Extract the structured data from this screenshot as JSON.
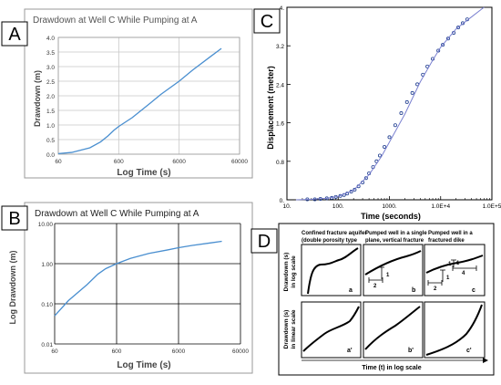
{
  "panel_labels": {
    "a": "A",
    "b": "B",
    "c": "C",
    "d": "D"
  },
  "chart_data": [
    {
      "id": "A",
      "type": "line",
      "title": "Drawdown at Well C While Pumping at A",
      "xlabel": "Log Time (s)",
      "ylabel": "Drawdown (m)",
      "xscale": "log",
      "xticks": [
        "60",
        "600",
        "6000",
        "60000"
      ],
      "xtick_values": [
        60,
        600,
        6000,
        60000
      ],
      "yticks": [
        "0.0",
        "0.5",
        "1.0",
        "1.5",
        "2.0",
        "2.5",
        "3.0",
        "3.5",
        "4.0"
      ],
      "xlim": [
        60,
        60000
      ],
      "ylim": [
        0,
        4
      ],
      "grid": true,
      "series": [
        {
          "color": "#4a8fd0",
          "x": [
            60,
            100,
            200,
            300,
            400,
            500,
            600,
            1000,
            2000,
            3000,
            6000,
            10000,
            20000,
            30000
          ],
          "y": [
            0.02,
            0.06,
            0.22,
            0.42,
            0.63,
            0.82,
            0.95,
            1.25,
            1.75,
            2.05,
            2.5,
            2.88,
            3.35,
            3.62
          ]
        }
      ]
    },
    {
      "id": "B",
      "type": "line",
      "title": "Drawdown at Well C While Pumping at A",
      "xlabel": "Log Time (s)",
      "ylabel": "Log Drawdown (m)",
      "xscale": "log",
      "yscale": "log",
      "xticks": [
        "60",
        "600",
        "6000",
        "60000"
      ],
      "xtick_values": [
        60,
        600,
        6000,
        60000
      ],
      "yticks": [
        "0.01",
        "0.10",
        "1.00",
        "10.00"
      ],
      "ytick_values": [
        0.01,
        0.1,
        1,
        10
      ],
      "xlim": [
        60,
        60000
      ],
      "ylim": [
        0.01,
        10
      ],
      "grid": true,
      "series": [
        {
          "color": "#4a8fd0",
          "x": [
            60,
            100,
            200,
            300,
            400,
            600,
            1000,
            2000,
            4000,
            6000,
            10000,
            20000,
            30000
          ],
          "y": [
            0.05,
            0.12,
            0.3,
            0.55,
            0.75,
            1.0,
            1.35,
            1.8,
            2.2,
            2.5,
            2.85,
            3.3,
            3.6
          ]
        }
      ]
    },
    {
      "id": "C",
      "type": "scatter",
      "xlabel": "Time (seconds)",
      "ylabel": "Displacement (meter)",
      "xscale": "log",
      "xticks": [
        "10.",
        "100.",
        "1000.",
        "1.0E+4",
        "1.0E+5"
      ],
      "xtick_values": [
        10,
        100,
        1000,
        10000,
        100000
      ],
      "yticks": [
        "0.",
        "0.8",
        "1.6",
        "2.4",
        "3.2",
        "4."
      ],
      "ytick_values": [
        0,
        0.8,
        1.6,
        2.4,
        3.2,
        4
      ],
      "xlim": [
        10,
        100000
      ],
      "ylim": [
        0,
        4
      ],
      "grid": false,
      "series": [
        {
          "kind": "points",
          "color": "#1f3d8f",
          "x": [
            25,
            35,
            45,
            60,
            75,
            90,
            110,
            130,
            150,
            180,
            210,
            250,
            300,
            350,
            400,
            480,
            560,
            650,
            800,
            1000,
            1300,
            1700,
            2200,
            2800,
            3500,
            4500,
            5500,
            7000,
            9000,
            11000,
            14000,
            18000,
            22000,
            27000,
            33000
          ],
          "y": [
            0.01,
            0.01,
            0.02,
            0.03,
            0.04,
            0.06,
            0.08,
            0.1,
            0.13,
            0.17,
            0.21,
            0.28,
            0.36,
            0.45,
            0.55,
            0.68,
            0.8,
            0.92,
            1.1,
            1.3,
            1.55,
            1.8,
            2.03,
            2.22,
            2.4,
            2.6,
            2.77,
            2.93,
            3.1,
            3.22,
            3.35,
            3.47,
            3.58,
            3.67,
            3.75
          ]
        },
        {
          "kind": "fit",
          "color": "#7a80d0",
          "x": [
            15,
            30,
            60,
            100,
            200,
            400,
            700,
            1000,
            2000,
            4000,
            7000,
            10000,
            20000,
            40000,
            70000
          ],
          "y": [
            0.0,
            0.01,
            0.03,
            0.07,
            0.2,
            0.52,
            0.9,
            1.2,
            1.78,
            2.45,
            2.9,
            3.17,
            3.55,
            3.8,
            4.0
          ]
        }
      ]
    }
  ],
  "panel_d": {
    "columns": [
      "Confined fracture aquifer (double porosity type",
      "Pumped well in a single plane, vertical fracture",
      "Pumped well in a fractured dike"
    ],
    "ylabel_top": "Drawdown (s) in log scale",
    "ylabel_bottom": "Drawdown (s) in linear scale",
    "xlabel": "Time (t) in log scale",
    "cell_labels": [
      "a",
      "b",
      "c",
      "a'",
      "b'",
      "c'"
    ],
    "slope_marks": [
      "1",
      "2",
      "1",
      "1",
      "2",
      "4",
      "1"
    ]
  }
}
